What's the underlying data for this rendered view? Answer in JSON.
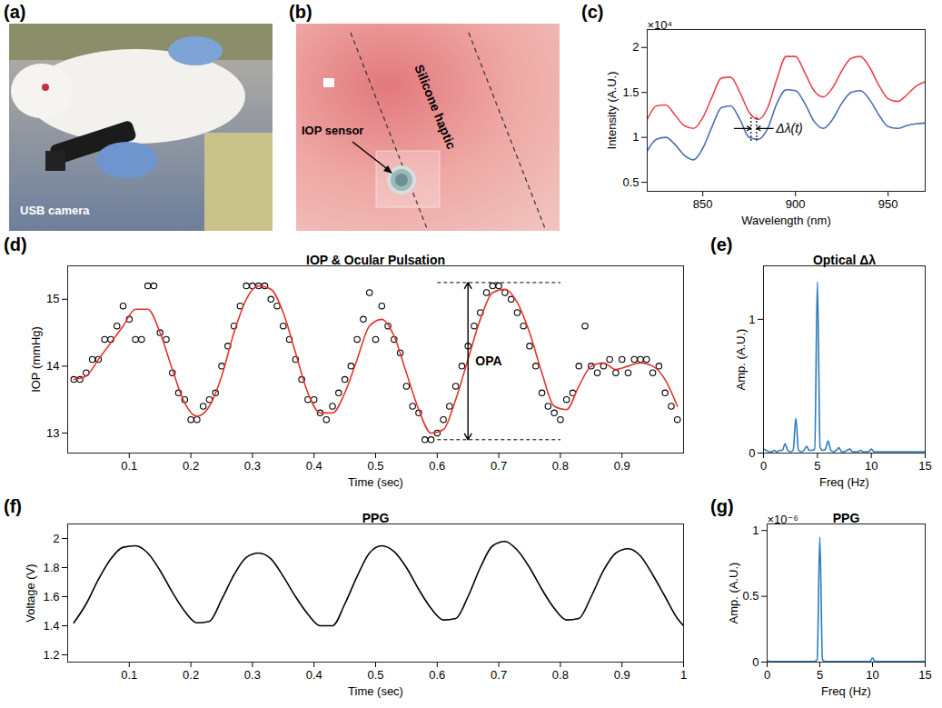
{
  "chart_data": [
    {
      "panel": "(a)",
      "type": "image",
      "annotations": [
        {
          "text": "USB camera"
        }
      ]
    },
    {
      "panel": "(b)",
      "type": "image",
      "annotations": [
        {
          "text": "IOP sensor"
        },
        {
          "text": "Silicone haptic"
        }
      ]
    },
    {
      "panel": "(c)",
      "type": "line",
      "xlabel": "Wavelength (nm)",
      "ylabel": "Intensity (A.U.)",
      "x": [
        820,
        825,
        830,
        835,
        840,
        845,
        850,
        855,
        860,
        865,
        870,
        875,
        880,
        885,
        890,
        895,
        900,
        905,
        910,
        915,
        920,
        925,
        930,
        935,
        940,
        945,
        950,
        955,
        960,
        965,
        970
      ],
      "series": [
        {
          "color": "#e8454d",
          "values": [
            1.2,
            1.35,
            1.36,
            1.25,
            1.13,
            1.1,
            1.22,
            1.45,
            1.66,
            1.67,
            1.5,
            1.28,
            1.2,
            1.33,
            1.65,
            1.9,
            1.9,
            1.72,
            1.52,
            1.45,
            1.55,
            1.74,
            1.88,
            1.9,
            1.78,
            1.58,
            1.43,
            1.4,
            1.47,
            1.57,
            1.62
          ]
        },
        {
          "color": "#4a6eb0",
          "values": [
            0.85,
            0.98,
            1.0,
            0.92,
            0.8,
            0.75,
            0.88,
            1.12,
            1.33,
            1.35,
            1.2,
            1.0,
            0.98,
            1.1,
            1.38,
            1.53,
            1.52,
            1.38,
            1.18,
            1.1,
            1.2,
            1.38,
            1.5,
            1.52,
            1.42,
            1.25,
            1.12,
            1.1,
            1.13,
            1.15,
            1.16
          ]
        }
      ],
      "xlim": [
        820,
        970
      ],
      "xticks": [
        850,
        900,
        950
      ],
      "ylim": [
        0.4,
        2.2
      ],
      "yticks": [
        0.5,
        1,
        1.5,
        2
      ],
      "annotations": [
        {
          "text": "×10⁴"
        },
        {
          "text": "Δλ(t)",
          "x": [
            876,
            879
          ],
          "y": 1.1
        }
      ]
    },
    {
      "panel": "(d)",
      "type": "scatter",
      "title": "IOP & Ocular Pulsation",
      "xlabel": "Time (sec)",
      "ylabel": "IOP (mmHg)",
      "series": [
        {
          "type": "scatter",
          "marker": "circle",
          "color": "#000000",
          "x": [
            0.01,
            0.02,
            0.03,
            0.04,
            0.05,
            0.06,
            0.07,
            0.08,
            0.09,
            0.1,
            0.11,
            0.12,
            0.13,
            0.14,
            0.15,
            0.16,
            0.17,
            0.18,
            0.19,
            0.2,
            0.21,
            0.22,
            0.23,
            0.24,
            0.25,
            0.26,
            0.27,
            0.28,
            0.29,
            0.3,
            0.31,
            0.32,
            0.33,
            0.34,
            0.35,
            0.36,
            0.37,
            0.38,
            0.39,
            0.4,
            0.41,
            0.42,
            0.43,
            0.44,
            0.45,
            0.46,
            0.47,
            0.48,
            0.49,
            0.5,
            0.51,
            0.52,
            0.53,
            0.54,
            0.55,
            0.56,
            0.57,
            0.58,
            0.59,
            0.6,
            0.61,
            0.62,
            0.63,
            0.64,
            0.65,
            0.66,
            0.67,
            0.68,
            0.69,
            0.7,
            0.71,
            0.72,
            0.73,
            0.74,
            0.75,
            0.76,
            0.77,
            0.78,
            0.79,
            0.8,
            0.81,
            0.82,
            0.83,
            0.84,
            0.85,
            0.86,
            0.87,
            0.88,
            0.89,
            0.9,
            0.91,
            0.92,
            0.93,
            0.94,
            0.95,
            0.96,
            0.97,
            0.98,
            0.99
          ],
          "values": [
            13.8,
            13.8,
            13.9,
            14.1,
            14.1,
            14.4,
            14.4,
            14.6,
            14.9,
            14.7,
            14.4,
            14.4,
            15.2,
            15.2,
            14.5,
            14.4,
            13.9,
            13.6,
            13.5,
            13.2,
            13.2,
            13.4,
            13.5,
            13.6,
            14.0,
            14.3,
            14.6,
            14.9,
            15.2,
            15.2,
            15.2,
            15.2,
            15.0,
            14.9,
            14.6,
            14.4,
            14.1,
            13.8,
            13.5,
            13.5,
            13.3,
            13.2,
            13.4,
            13.6,
            13.8,
            14.0,
            14.4,
            14.7,
            15.1,
            14.4,
            14.9,
            14.6,
            14.4,
            14.2,
            13.7,
            13.4,
            13.3,
            12.9,
            12.9,
            13.0,
            13.2,
            13.4,
            13.7,
            14.0,
            14.3,
            14.6,
            14.8,
            15.1,
            15.2,
            15.2,
            15.1,
            15.0,
            14.8,
            14.6,
            14.3,
            14.0,
            13.6,
            13.4,
            13.3,
            13.2,
            13.5,
            13.6,
            14.0,
            14.6,
            14.0,
            13.9,
            14.0,
            14.1,
            13.9,
            14.1,
            13.9,
            14.1,
            14.1,
            14.1,
            13.9,
            14.0,
            13.6,
            13.4,
            13.2
          ]
        },
        {
          "type": "line",
          "color": "#e3342f",
          "x": [
            0.01,
            0.03,
            0.05,
            0.07,
            0.09,
            0.11,
            0.13,
            0.15,
            0.17,
            0.19,
            0.21,
            0.23,
            0.25,
            0.27,
            0.29,
            0.31,
            0.33,
            0.35,
            0.37,
            0.39,
            0.41,
            0.43,
            0.45,
            0.47,
            0.49,
            0.51,
            0.53,
            0.55,
            0.57,
            0.59,
            0.61,
            0.63,
            0.65,
            0.67,
            0.69,
            0.71,
            0.73,
            0.75,
            0.77,
            0.79,
            0.81,
            0.83,
            0.85,
            0.87,
            0.89,
            0.91,
            0.93,
            0.95,
            0.97,
            0.99
          ],
          "values": [
            13.8,
            13.85,
            14.1,
            14.35,
            14.6,
            14.85,
            14.85,
            14.5,
            13.95,
            13.45,
            13.25,
            13.4,
            13.85,
            14.5,
            15.0,
            15.2,
            15.15,
            14.8,
            14.2,
            13.6,
            13.3,
            13.3,
            13.6,
            14.1,
            14.6,
            14.7,
            14.45,
            13.9,
            13.35,
            13.0,
            13.05,
            13.5,
            14.1,
            14.7,
            15.1,
            15.15,
            14.95,
            14.5,
            13.9,
            13.4,
            13.35,
            13.7,
            14.0,
            14.05,
            13.95,
            14.0,
            14.05,
            14.0,
            13.8,
            13.4
          ]
        }
      ],
      "xlim": [
        0,
        1
      ],
      "xticks": [
        0.1,
        0.2,
        0.3,
        0.4,
        0.5,
        0.6,
        0.7,
        0.8,
        0.9
      ],
      "ylim": [
        12.7,
        15.5
      ],
      "yticks": [
        13,
        14,
        15
      ],
      "annotations": [
        {
          "text": "OPA",
          "x": 0.65,
          "y": [
            12.9,
            15.25
          ],
          "span": [
            0.6,
            0.8
          ]
        }
      ]
    },
    {
      "panel": "(e)",
      "type": "line",
      "title": "Optical Δλ",
      "xlabel": "Freq (Hz)",
      "ylabel": "Amp. (A.U.)",
      "x": [
        0,
        0.25,
        0.5,
        0.75,
        1,
        1.25,
        1.5,
        1.75,
        2,
        2.25,
        2.5,
        2.75,
        3,
        3.25,
        3.5,
        3.75,
        4,
        4.25,
        4.5,
        4.75,
        5,
        5.25,
        5.5,
        5.75,
        6,
        6.25,
        6.5,
        6.75,
        7,
        7.25,
        7.5,
        7.75,
        8,
        8.25,
        8.5,
        8.75,
        9,
        9.25,
        9.5,
        9.75,
        10,
        10.25,
        10.5,
        10.75,
        11,
        11.25,
        11.5,
        11.75,
        12,
        12.25,
        12.5,
        12.75,
        13,
        13.25,
        13.5,
        13.75,
        14,
        14.25,
        14.5,
        14.75,
        15
      ],
      "series": [
        {
          "color": "#2b7bba",
          "values": [
            0.03,
            0.02,
            0.01,
            0.01,
            0.02,
            0.01,
            0.02,
            0.02,
            0.07,
            0.02,
            0.01,
            0.02,
            0.26,
            0.02,
            0.01,
            0.02,
            0.05,
            0.02,
            0.02,
            0.03,
            1.28,
            0.04,
            0.02,
            0.03,
            0.09,
            0.02,
            0.01,
            0.02,
            0.04,
            0.01,
            0.01,
            0.02,
            0.03,
            0.01,
            0.01,
            0.01,
            0.02,
            0.01,
            0.01,
            0.01,
            0.03,
            0.01,
            0.01,
            0.01,
            0.01,
            0.01,
            0.01,
            0.01,
            0.01,
            0.01,
            0.01,
            0.01,
            0.01,
            0.01,
            0.01,
            0.01,
            0.01,
            0.01,
            0.01,
            0.01,
            0.01
          ]
        }
      ],
      "xlim": [
        0,
        15
      ],
      "xticks": [
        0,
        5,
        10,
        15
      ],
      "ylim": [
        0,
        1.4
      ],
      "yticks": [
        0,
        1
      ]
    },
    {
      "panel": "(f)",
      "type": "line",
      "title": "PPG",
      "xlabel": "Time (sec)",
      "ylabel": "Voltage (V)",
      "x": [
        0.01,
        0.03,
        0.05,
        0.07,
        0.09,
        0.11,
        0.13,
        0.15,
        0.17,
        0.19,
        0.21,
        0.23,
        0.25,
        0.27,
        0.29,
        0.31,
        0.33,
        0.35,
        0.37,
        0.39,
        0.41,
        0.43,
        0.45,
        0.47,
        0.49,
        0.51,
        0.53,
        0.55,
        0.57,
        0.59,
        0.61,
        0.63,
        0.65,
        0.67,
        0.69,
        0.71,
        0.73,
        0.75,
        0.77,
        0.79,
        0.81,
        0.83,
        0.85,
        0.87,
        0.89,
        0.91,
        0.93,
        0.95,
        0.97,
        0.99,
        1
      ],
      "series": [
        {
          "color": "#000000",
          "values": [
            1.42,
            1.55,
            1.72,
            1.86,
            1.94,
            1.95,
            1.9,
            1.78,
            1.63,
            1.5,
            1.42,
            1.43,
            1.58,
            1.75,
            1.87,
            1.9,
            1.86,
            1.74,
            1.6,
            1.48,
            1.4,
            1.4,
            1.55,
            1.74,
            1.9,
            1.95,
            1.91,
            1.8,
            1.65,
            1.52,
            1.44,
            1.45,
            1.6,
            1.8,
            1.95,
            1.98,
            1.92,
            1.8,
            1.65,
            1.52,
            1.44,
            1.45,
            1.6,
            1.78,
            1.9,
            1.93,
            1.88,
            1.75,
            1.6,
            1.45,
            1.4
          ]
        }
      ],
      "xlim": [
        0,
        1
      ],
      "xticks": [
        0.1,
        0.2,
        0.3,
        0.4,
        0.5,
        0.6,
        0.7,
        0.8,
        0.9,
        1
      ],
      "ylim": [
        1.15,
        2.1
      ],
      "yticks": [
        1.2,
        1.4,
        1.6,
        1.8,
        2
      ]
    },
    {
      "panel": "(g)",
      "type": "line",
      "title": "PPG",
      "xlabel": "Freq (Hz)",
      "ylabel": "Amp. (A.U.)",
      "x": [
        0,
        0.25,
        0.5,
        0.75,
        1,
        1.25,
        1.5,
        1.75,
        2,
        2.25,
        2.5,
        2.75,
        3,
        3.25,
        3.5,
        3.75,
        4,
        4.25,
        4.5,
        4.75,
        5,
        5.25,
        5.5,
        5.75,
        6,
        6.25,
        6.5,
        6.75,
        7,
        7.25,
        7.5,
        7.75,
        8,
        8.25,
        8.5,
        8.75,
        9,
        9.25,
        9.5,
        9.75,
        10,
        10.25,
        10.5,
        10.75,
        11,
        11.25,
        11.5,
        11.75,
        12,
        12.25,
        12.5,
        12.75,
        13,
        13.25,
        13.5,
        13.75,
        14,
        14.25,
        14.5,
        14.75,
        15
      ],
      "series": [
        {
          "color": "#2b7bba",
          "values": [
            0.01,
            0.005,
            0.005,
            0.005,
            0.005,
            0.005,
            0.005,
            0.005,
            0.005,
            0.005,
            0.005,
            0.005,
            0.005,
            0.005,
            0.005,
            0.005,
            0.005,
            0.005,
            0.005,
            0.02,
            0.95,
            0.02,
            0.005,
            0.005,
            0.005,
            0.005,
            0.005,
            0.005,
            0.005,
            0.005,
            0.005,
            0.005,
            0.005,
            0.005,
            0.005,
            0.005,
            0.005,
            0.005,
            0.005,
            0.005,
            0.03,
            0.005,
            0.005,
            0.005,
            0.005,
            0.005,
            0.005,
            0.005,
            0.005,
            0.005,
            0.005,
            0.005,
            0.005,
            0.005,
            0.005,
            0.005,
            0.005,
            0.005,
            0.005,
            0.005,
            0.005
          ]
        }
      ],
      "xlim": [
        0,
        15
      ],
      "xticks": [
        0,
        5,
        10,
        15
      ],
      "ylim": [
        0,
        1.05
      ],
      "yticks": [
        0,
        0.5,
        1
      ],
      "annotations": [
        {
          "text": "×10⁻⁶"
        }
      ]
    }
  ]
}
